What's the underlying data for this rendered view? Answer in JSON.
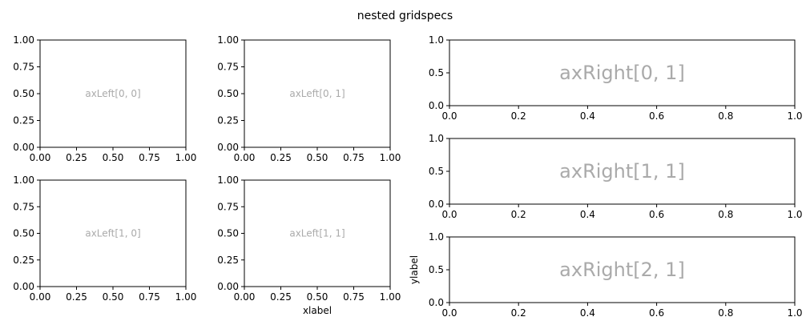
{
  "figure": {
    "suptitle": "nested gridspecs",
    "colors": {
      "annotation": "#aaaaaa",
      "axis": "#000000",
      "background": "#ffffff"
    }
  },
  "chart_data": [
    {
      "type": "scatter",
      "name": "axLeft[0, 0]",
      "annotation": "axLeft[0, 0]",
      "xlim": [
        0,
        1
      ],
      "ylim": [
        0,
        1
      ],
      "xticks": [
        "0.00",
        "0.25",
        "0.50",
        "0.75",
        "1.00"
      ],
      "yticks": [
        "0.00",
        "0.25",
        "0.50",
        "0.75",
        "1.00"
      ],
      "xlabel": "",
      "ylabel": "",
      "grid": false,
      "series": []
    },
    {
      "type": "scatter",
      "name": "axLeft[0, 1]",
      "annotation": "axLeft[0, 1]",
      "xlim": [
        0,
        1
      ],
      "ylim": [
        0,
        1
      ],
      "xticks": [
        "0.00",
        "0.25",
        "0.50",
        "0.75",
        "1.00"
      ],
      "yticks": [
        "0.00",
        "0.25",
        "0.50",
        "0.75",
        "1.00"
      ],
      "xlabel": "",
      "ylabel": "",
      "grid": false,
      "series": []
    },
    {
      "type": "scatter",
      "name": "axLeft[1, 0]",
      "annotation": "axLeft[1, 0]",
      "xlim": [
        0,
        1
      ],
      "ylim": [
        0,
        1
      ],
      "xticks": [
        "0.00",
        "0.25",
        "0.50",
        "0.75",
        "1.00"
      ],
      "yticks": [
        "0.00",
        "0.25",
        "0.50",
        "0.75",
        "1.00"
      ],
      "xlabel": "",
      "ylabel": "",
      "grid": false,
      "series": []
    },
    {
      "type": "scatter",
      "name": "axLeft[1, 1]",
      "annotation": "axLeft[1, 1]",
      "xlim": [
        0,
        1
      ],
      "ylim": [
        0,
        1
      ],
      "xticks": [
        "0.00",
        "0.25",
        "0.50",
        "0.75",
        "1.00"
      ],
      "yticks": [
        "0.00",
        "0.25",
        "0.50",
        "0.75",
        "1.00"
      ],
      "xlabel": "xlabel",
      "ylabel": "",
      "grid": false,
      "series": []
    },
    {
      "type": "scatter",
      "name": "axRight[0, 1]",
      "annotation": "axRight[0, 1]",
      "xlim": [
        0,
        1
      ],
      "ylim": [
        0,
        1
      ],
      "xticks": [
        "0.0",
        "0.2",
        "0.4",
        "0.6",
        "0.8",
        "1.0"
      ],
      "yticks": [
        "0.0",
        "0.5",
        "1.0"
      ],
      "xlabel": "",
      "ylabel": "",
      "grid": false,
      "series": []
    },
    {
      "type": "scatter",
      "name": "axRight[1, 1]",
      "annotation": "axRight[1, 1]",
      "xlim": [
        0,
        1
      ],
      "ylim": [
        0,
        1
      ],
      "xticks": [
        "0.0",
        "0.2",
        "0.4",
        "0.6",
        "0.8",
        "1.0"
      ],
      "yticks": [
        "0.0",
        "0.5",
        "1.0"
      ],
      "xlabel": "",
      "ylabel": "",
      "grid": false,
      "series": []
    },
    {
      "type": "scatter",
      "name": "axRight[2, 1]",
      "annotation": "axRight[2, 1]",
      "xlim": [
        0,
        1
      ],
      "ylim": [
        0,
        1
      ],
      "xticks": [
        "0.0",
        "0.2",
        "0.4",
        "0.6",
        "0.8",
        "1.0"
      ],
      "yticks": [
        "0.0",
        "0.5",
        "1.0"
      ],
      "xlabel": "",
      "ylabel": "ylabel",
      "grid": false,
      "series": []
    }
  ]
}
